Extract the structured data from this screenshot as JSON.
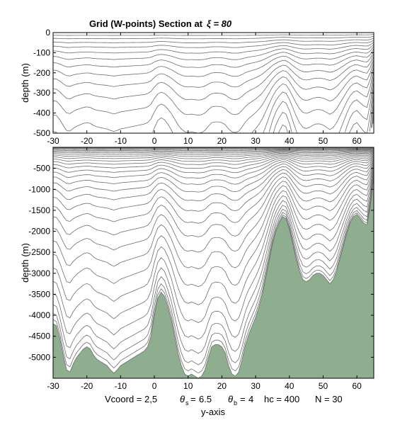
{
  "chart_data": {
    "type": "line",
    "title": "Grid (W-points) Section at",
    "title_xi": "ξ = 80",
    "xlabel": "y-axis",
    "parameters": {
      "vcoord": "Vcoord = 2,5",
      "theta_s": "6.5",
      "theta_b": "4",
      "hc": "hc = 400",
      "n": "N = 30"
    },
    "line_color": "#6d6d6d",
    "bathymetry_color": "#8fae90",
    "panels": [
      {
        "name": "top",
        "ylabel": "depth  (m)",
        "xlim": [
          -30,
          65
        ],
        "ylim": [
          -500,
          0
        ],
        "xticks": [
          -30,
          -20,
          -10,
          0,
          10,
          20,
          30,
          40,
          50,
          60
        ],
        "yticks": [
          0,
          -100,
          -200,
          -300,
          -400,
          -500
        ],
        "bathymetry": false
      },
      {
        "name": "bottom",
        "ylabel": "depth  (m)",
        "xlim": [
          -30,
          65
        ],
        "ylim": [
          -5500,
          0
        ],
        "xticks": [
          -30,
          -20,
          -10,
          0,
          10,
          20,
          30,
          40,
          50,
          60
        ],
        "yticks": [
          -500,
          -1000,
          -1500,
          -2000,
          -2500,
          -3000,
          -3500,
          -4000,
          -4500,
          -5000
        ],
        "bathymetry": true
      }
    ],
    "bathymetry_profile": {
      "y": [
        -30,
        -29,
        -28,
        -27,
        -26,
        -25,
        -24,
        -23,
        -22,
        -21,
        -20,
        -19,
        -18,
        -17,
        -16,
        -15,
        -14,
        -13,
        -12,
        -11,
        -10,
        -9,
        -8,
        -7,
        -6,
        -5,
        -4,
        -3,
        -2,
        -1,
        0,
        1,
        2,
        3,
        4,
        5,
        6,
        7,
        8,
        9,
        10,
        11,
        12,
        13,
        14,
        15,
        16,
        17,
        18,
        19,
        20,
        21,
        22,
        23,
        24,
        25,
        26,
        27,
        28,
        29,
        30,
        31,
        32,
        33,
        34,
        35,
        36,
        37,
        38,
        39,
        40,
        41,
        42,
        43,
        44,
        45,
        46,
        47,
        48,
        49,
        50,
        51,
        52,
        53,
        54,
        55,
        56,
        57,
        58,
        59,
        60,
        61,
        62,
        63,
        64,
        65
      ],
      "depth": [
        -4200,
        -4250,
        -4550,
        -4950,
        -5300,
        -5350,
        -5150,
        -5000,
        -4900,
        -4800,
        -4750,
        -4800,
        -4950,
        -5050,
        -5100,
        -5150,
        -5200,
        -5300,
        -5380,
        -5300,
        -5200,
        -5150,
        -5100,
        -5050,
        -5000,
        -4950,
        -4900,
        -4850,
        -4750,
        -4500,
        -4000,
        -3600,
        -3450,
        -3550,
        -3800,
        -4100,
        -4500,
        -4900,
        -5200,
        -5400,
        -5450,
        -5400,
        -5450,
        -5500,
        -5450,
        -5300,
        -5000,
        -4750,
        -4700,
        -4700,
        -4750,
        -4900,
        -5200,
        -5400,
        -5450,
        -5350,
        -5050,
        -4700,
        -4450,
        -4250,
        -4050,
        -3800,
        -3500,
        -3100,
        -2700,
        -2300,
        -2000,
        -1800,
        -1650,
        -1700,
        -1950,
        -2300,
        -2650,
        -2950,
        -3150,
        -3200,
        -3150,
        -3050,
        -3000,
        -3000,
        -3050,
        -3150,
        -3250,
        -3150,
        -2950,
        -2650,
        -2350,
        -2050,
        -1800,
        -1650,
        -1600,
        -1700,
        -1800,
        -1850,
        -1400,
        -700
      ]
    }
  }
}
